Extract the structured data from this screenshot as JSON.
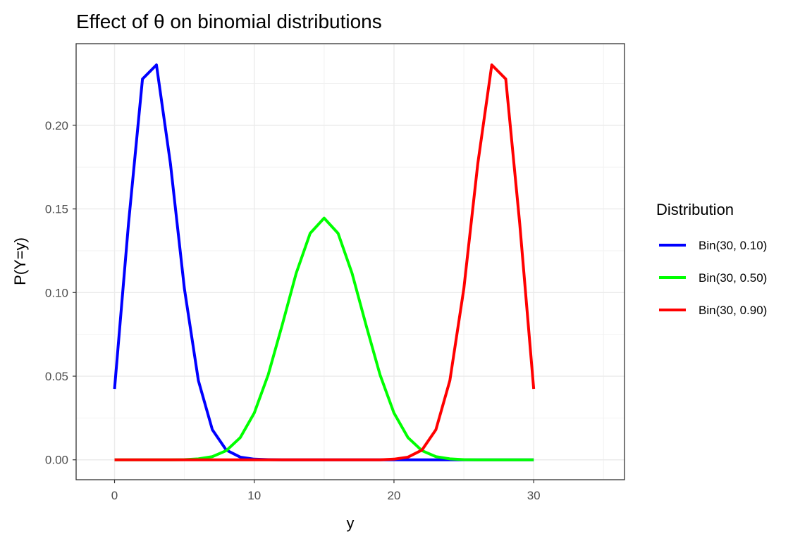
{
  "chart_data": {
    "type": "line",
    "title": "Effect of θ on binomial distributions",
    "xlabel": "y",
    "ylabel": "P(Y=y)",
    "xlim": [
      -2.75,
      36.5
    ],
    "ylim": [
      -0.0119,
      0.2488
    ],
    "x_ticks": [
      0,
      10,
      20,
      30
    ],
    "x_tick_labels": [
      "0",
      "10",
      "20",
      "30"
    ],
    "y_ticks": [
      0.0,
      0.05,
      0.1,
      0.15,
      0.2
    ],
    "y_tick_labels": [
      "0.00",
      "0.05",
      "0.10",
      "0.15",
      "0.20"
    ],
    "grid": true,
    "legend": {
      "title": "Distribution",
      "position": "right"
    },
    "x": [
      0,
      1,
      2,
      3,
      4,
      5,
      6,
      7,
      8,
      9,
      10,
      11,
      12,
      13,
      14,
      15,
      16,
      17,
      18,
      19,
      20,
      21,
      22,
      23,
      24,
      25,
      26,
      27,
      28,
      29,
      30
    ],
    "series": [
      {
        "name": "Bin(30, 0.10)",
        "color": "#0000ff",
        "values": [
          0.0424,
          0.1413,
          0.2277,
          0.2361,
          0.1771,
          0.1023,
          0.0474,
          0.018,
          0.0058,
          0.0016,
          0.0004,
          0.0001,
          0,
          0,
          0,
          0,
          0,
          0,
          0,
          0,
          0,
          0,
          0,
          0,
          0,
          0,
          0,
          0,
          0,
          0,
          0
        ]
      },
      {
        "name": "Bin(30, 0.50)",
        "color": "#00ff00",
        "values": [
          0,
          0,
          0,
          0,
          0,
          0.0001,
          0.0006,
          0.0019,
          0.0055,
          0.0133,
          0.028,
          0.0509,
          0.0806,
          0.1115,
          0.1354,
          0.1445,
          0.1354,
          0.1115,
          0.0806,
          0.0509,
          0.028,
          0.0133,
          0.0055,
          0.0019,
          0.0006,
          0.0001,
          0,
          0,
          0,
          0,
          0
        ]
      },
      {
        "name": "Bin(30, 0.90)",
        "color": "#ff0000",
        "values": [
          0,
          0,
          0,
          0,
          0,
          0,
          0,
          0,
          0,
          0,
          0,
          0,
          0,
          0,
          0,
          0,
          0,
          0,
          0,
          0,
          0.0004,
          0.0016,
          0.0058,
          0.018,
          0.0474,
          0.1023,
          0.1771,
          0.2361,
          0.2277,
          0.1413,
          0.0424
        ]
      }
    ]
  }
}
